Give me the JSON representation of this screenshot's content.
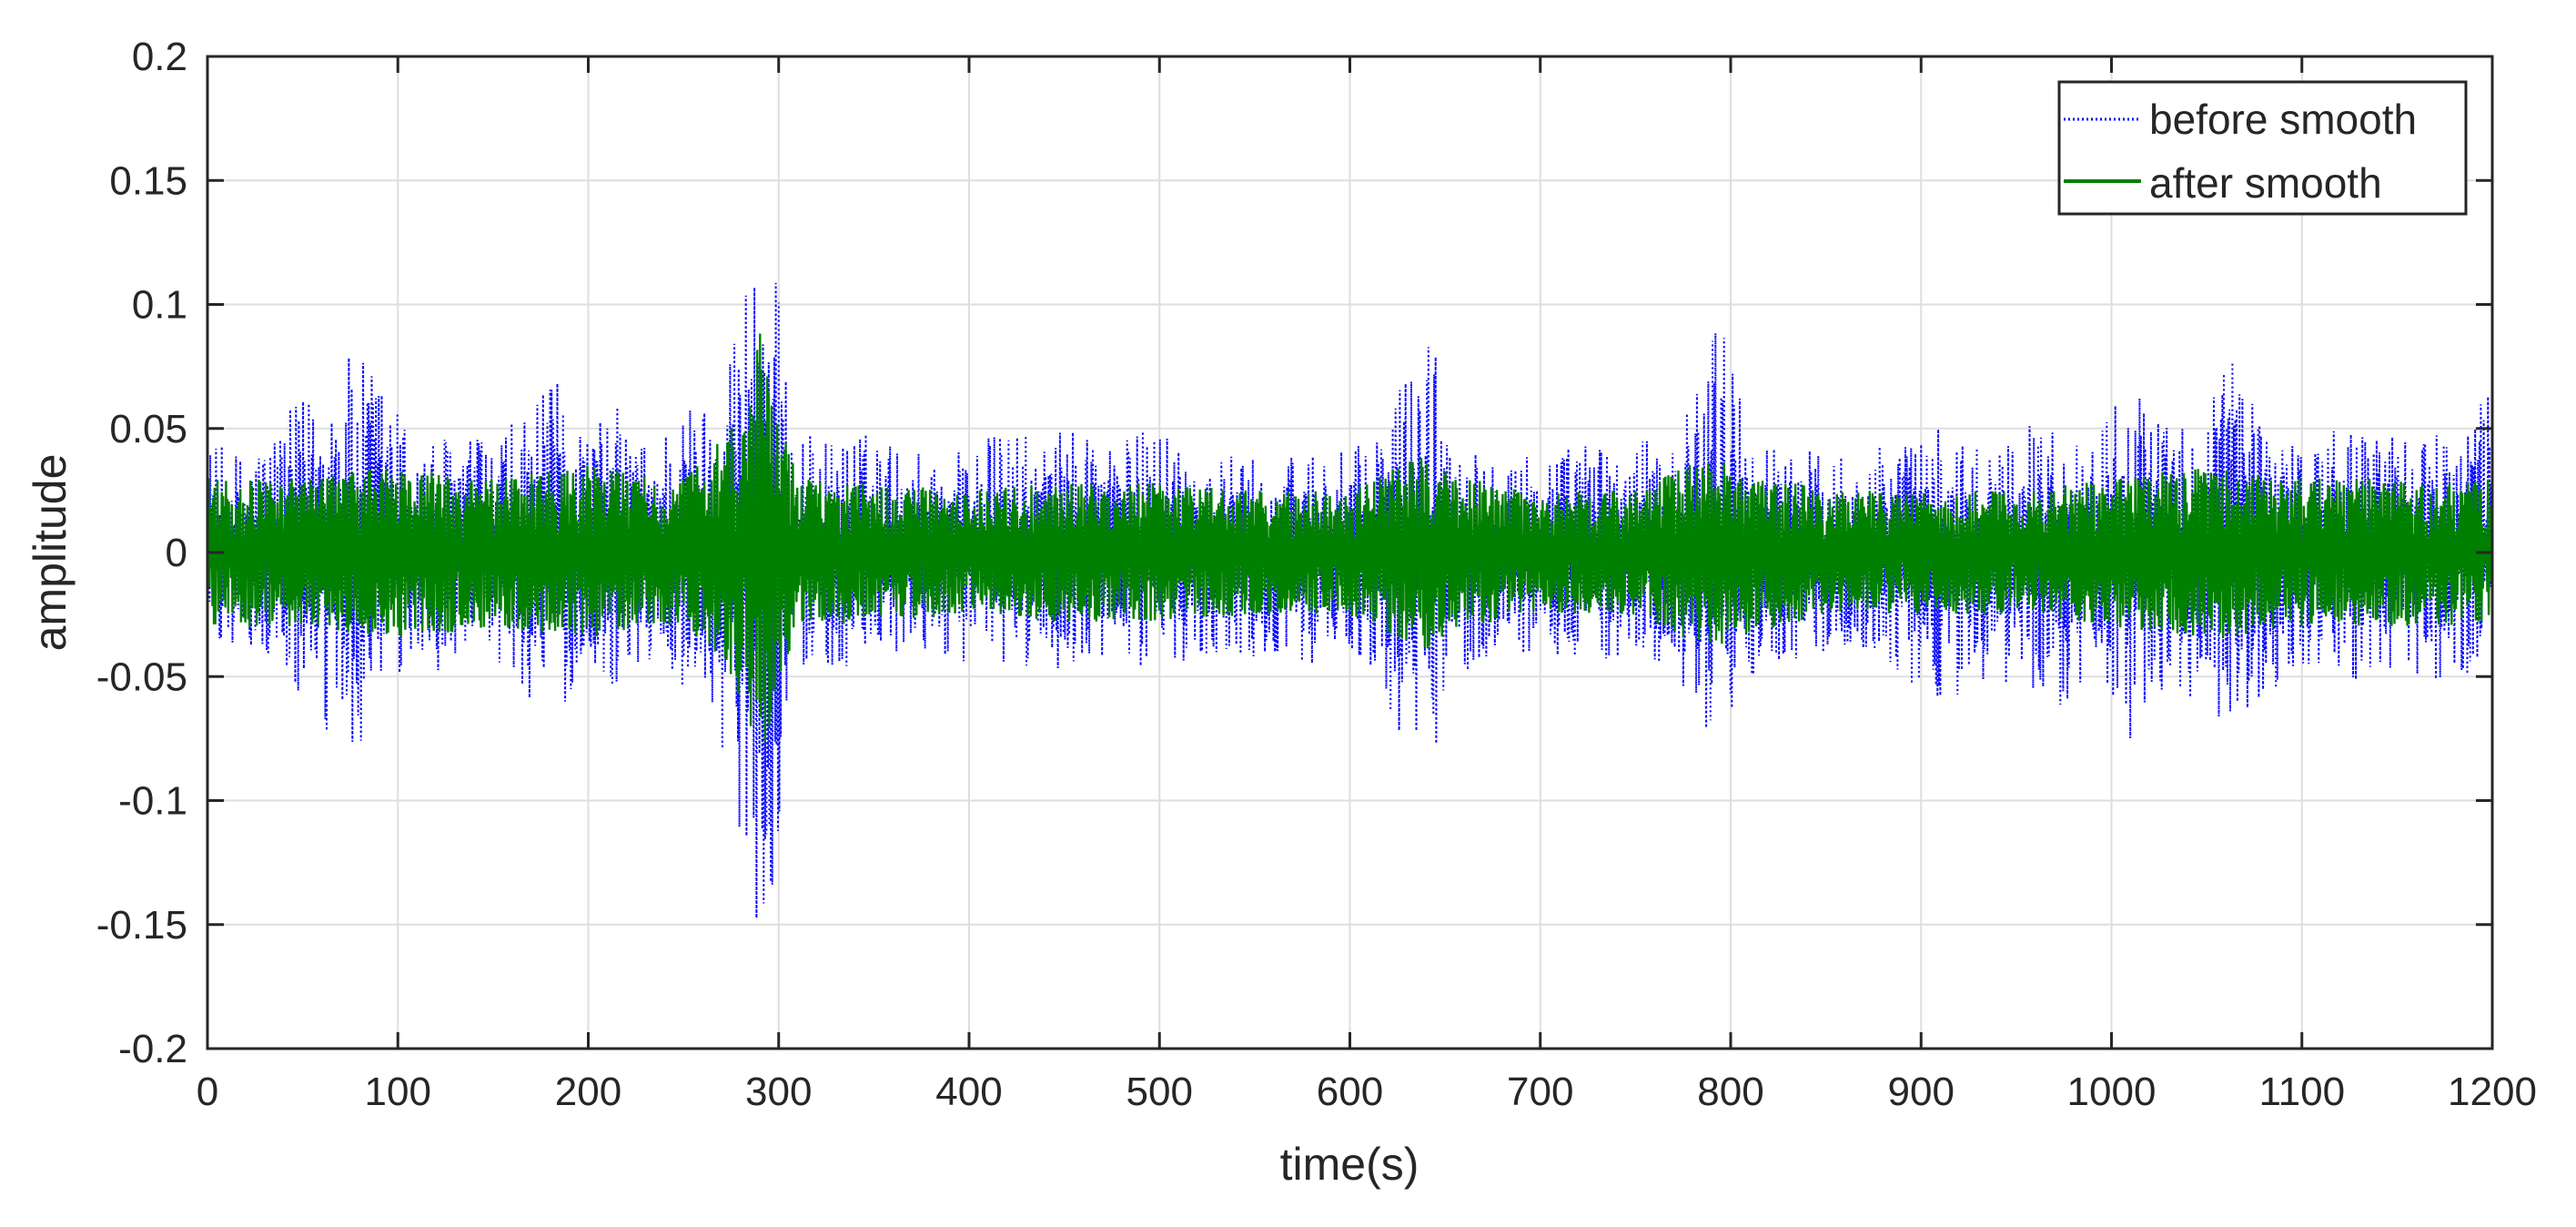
{
  "chart_data": {
    "type": "line",
    "title": "",
    "xlabel": "time(s)",
    "ylabel": "amplitude",
    "xlim": [
      0,
      1200
    ],
    "ylim": [
      -0.2,
      0.2
    ],
    "x_ticks": [
      0,
      100,
      200,
      300,
      400,
      500,
      600,
      700,
      800,
      900,
      1000,
      1100,
      1200
    ],
    "x_tick_labels": [
      "0",
      "100",
      "200",
      "300",
      "400",
      "500",
      "600",
      "700",
      "800",
      "900",
      "1000",
      "1100",
      "1200"
    ],
    "y_ticks": [
      -0.2,
      -0.15,
      -0.1,
      -0.05,
      0,
      0.05,
      0.1,
      0.15,
      0.2
    ],
    "y_tick_labels": [
      "-0.2",
      "-0.15",
      "-0.1",
      "-0.05",
      "0",
      "0.05",
      "0.1",
      "0.15",
      "0.2"
    ],
    "grid": true,
    "legend_position": "top-right",
    "series": [
      {
        "name": "before smooth",
        "color": "#0000ff",
        "line_style": "dotted",
        "envelope_x": [
          0,
          20,
          40,
          60,
          75,
          90,
          110,
          130,
          150,
          170,
          185,
          200,
          215,
          230,
          250,
          265,
          275,
          285,
          292,
          298,
          305,
          320,
          340,
          360,
          380,
          400,
          420,
          440,
          460,
          480,
          500,
          520,
          540,
          560,
          580,
          600,
          615,
          625,
          635,
          642,
          650,
          665,
          680,
          700,
          720,
          740,
          760,
          780,
          790,
          800,
          815,
          830,
          850,
          870,
          890,
          910,
          930,
          950,
          970,
          990,
          1000,
          1010,
          1020,
          1035,
          1050,
          1060,
          1070,
          1085,
          1100,
          1120,
          1140,
          1160,
          1180,
          1200
        ],
        "envelope_max": [
          0.045,
          0.04,
          0.055,
          0.07,
          0.08,
          0.075,
          0.045,
          0.05,
          0.045,
          0.06,
          0.07,
          0.05,
          0.06,
          0.045,
          0.06,
          0.065,
          0.09,
          0.13,
          0.15,
          0.12,
          0.06,
          0.045,
          0.05,
          0.045,
          0.04,
          0.045,
          0.05,
          0.045,
          0.055,
          0.045,
          0.055,
          0.04,
          0.04,
          0.035,
          0.045,
          0.04,
          0.05,
          0.07,
          0.08,
          0.095,
          0.06,
          0.045,
          0.045,
          0.04,
          0.045,
          0.045,
          0.045,
          0.06,
          0.108,
          0.08,
          0.045,
          0.045,
          0.04,
          0.045,
          0.045,
          0.05,
          0.045,
          0.05,
          0.055,
          0.045,
          0.06,
          0.085,
          0.055,
          0.05,
          0.06,
          0.09,
          0.07,
          0.055,
          0.045,
          0.05,
          0.055,
          0.045,
          0.05,
          0.065
        ],
        "envelope_min": [
          -0.035,
          -0.04,
          -0.05,
          -0.08,
          -0.085,
          -0.07,
          -0.045,
          -0.05,
          -0.045,
          -0.06,
          -0.065,
          -0.05,
          -0.055,
          -0.045,
          -0.055,
          -0.06,
          -0.1,
          -0.13,
          -0.168,
          -0.13,
          -0.06,
          -0.045,
          -0.05,
          -0.045,
          -0.04,
          -0.045,
          -0.05,
          -0.045,
          -0.05,
          -0.045,
          -0.05,
          -0.04,
          -0.045,
          -0.04,
          -0.045,
          -0.04,
          -0.05,
          -0.08,
          -0.085,
          -0.092,
          -0.06,
          -0.045,
          -0.045,
          -0.04,
          -0.045,
          -0.045,
          -0.045,
          -0.06,
          -0.104,
          -0.07,
          -0.045,
          -0.045,
          -0.04,
          -0.045,
          -0.05,
          -0.065,
          -0.055,
          -0.055,
          -0.065,
          -0.05,
          -0.06,
          -0.08,
          -0.06,
          -0.055,
          -0.065,
          -0.09,
          -0.07,
          -0.06,
          -0.05,
          -0.05,
          -0.06,
          -0.05,
          -0.055,
          -0.045
        ]
      },
      {
        "name": "after smooth",
        "color": "#008000",
        "line_style": "solid",
        "envelope_x": [
          0,
          50,
          100,
          150,
          200,
          250,
          275,
          285,
          292,
          298,
          310,
          350,
          400,
          450,
          500,
          550,
          600,
          625,
          640,
          660,
          700,
          750,
          790,
          800,
          850,
          900,
          950,
          1000,
          1050,
          1100,
          1150,
          1200
        ],
        "envelope_max": [
          0.03,
          0.03,
          0.035,
          0.03,
          0.035,
          0.03,
          0.05,
          0.07,
          0.095,
          0.06,
          0.03,
          0.028,
          0.025,
          0.028,
          0.028,
          0.025,
          0.025,
          0.035,
          0.04,
          0.03,
          0.025,
          0.025,
          0.04,
          0.035,
          0.025,
          0.025,
          0.025,
          0.03,
          0.035,
          0.03,
          0.03,
          0.03
        ],
        "envelope_min": [
          -0.03,
          -0.03,
          -0.035,
          -0.03,
          -0.035,
          -0.03,
          -0.05,
          -0.07,
          -0.09,
          -0.06,
          -0.03,
          -0.028,
          -0.025,
          -0.028,
          -0.028,
          -0.025,
          -0.025,
          -0.035,
          -0.04,
          -0.03,
          -0.025,
          -0.025,
          -0.04,
          -0.035,
          -0.025,
          -0.025,
          -0.025,
          -0.03,
          -0.035,
          -0.03,
          -0.03,
          -0.03
        ]
      }
    ]
  }
}
